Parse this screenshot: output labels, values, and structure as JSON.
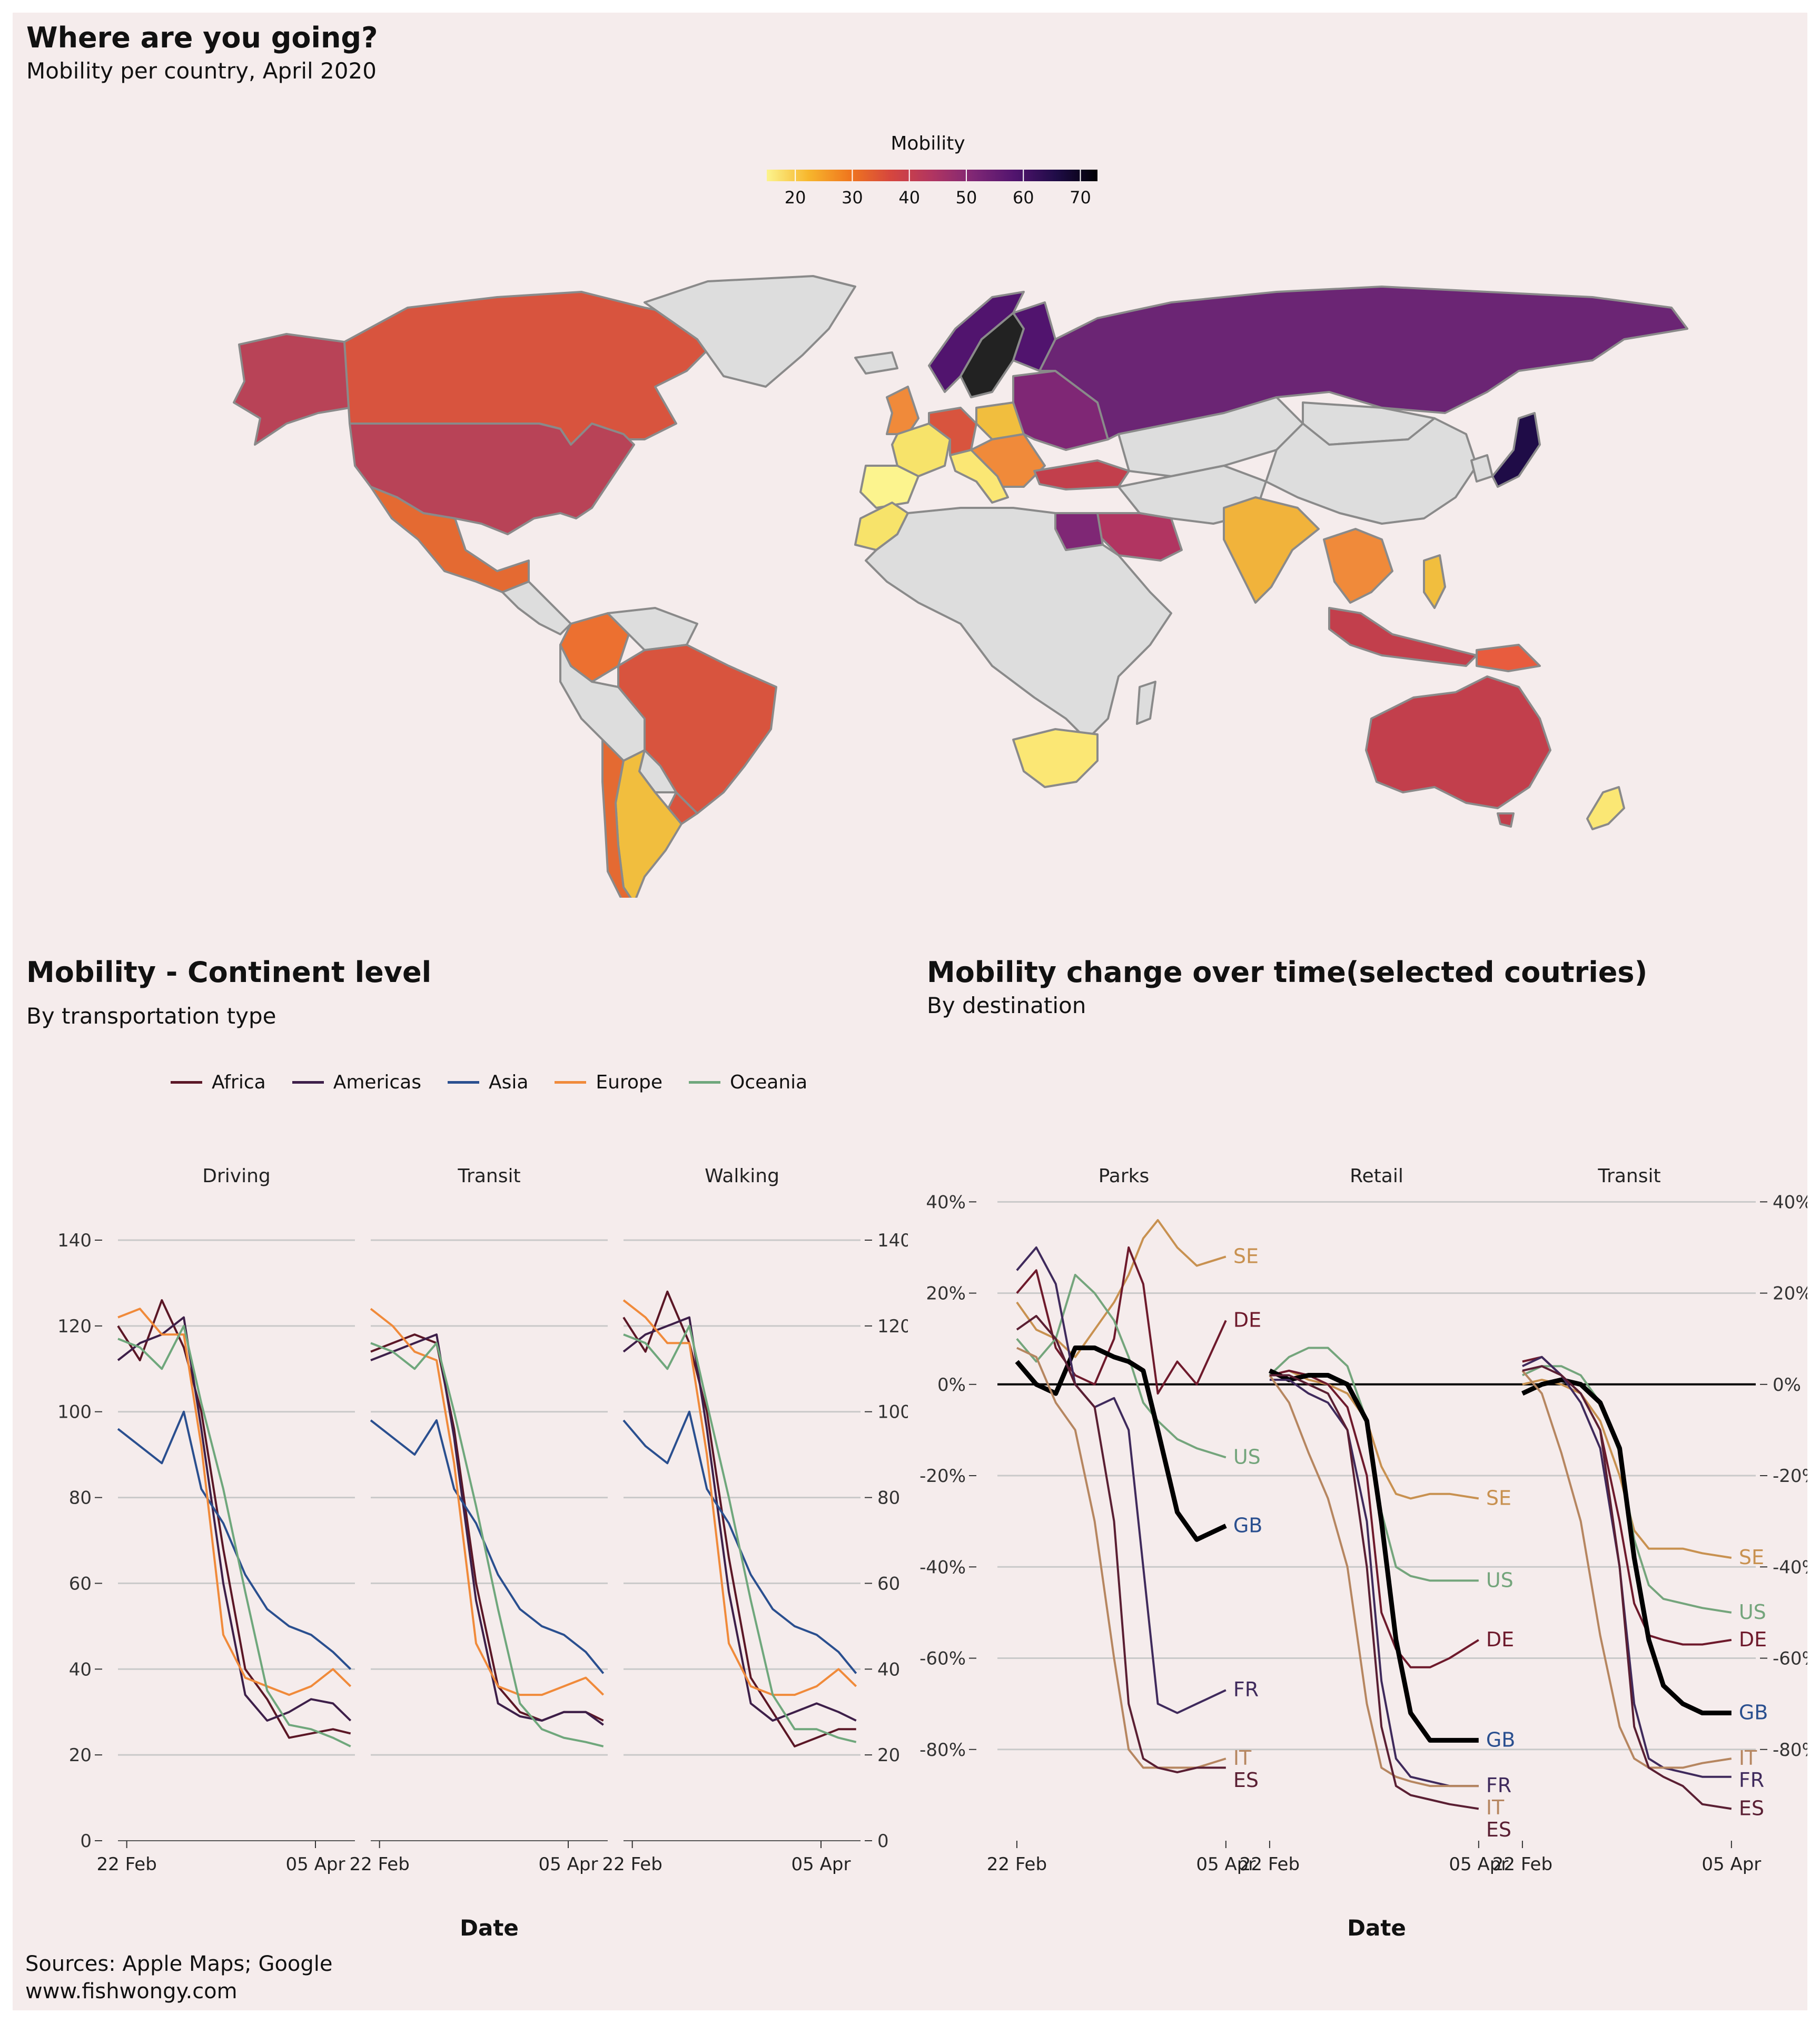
{
  "map": {
    "title": "Where are you going?",
    "subtitle": "Mobility per country, April 2020",
    "legend_title": "Mobility",
    "legend_ticks": [
      "20",
      "30",
      "40",
      "50",
      "60",
      "70"
    ],
    "legend_colors": [
      "#fcf48e",
      "#f7b72d",
      "#f0771e",
      "#d6463e",
      "#b13561",
      "#7f2775",
      "#51146e",
      "#1f0c47",
      "#000004"
    ],
    "no_data_color": "#dddddd"
  },
  "continent": {
    "title": "Mobility - Continent level",
    "subtitle": "By transportation type",
    "legend": [
      {
        "name": "Africa",
        "color": "#5b1726"
      },
      {
        "name": "Americas",
        "color": "#3d1f49"
      },
      {
        "name": "Asia",
        "color": "#2a4f8f"
      },
      {
        "name": "Europe",
        "color": "#f08a3a"
      },
      {
        "name": "Oceania",
        "color": "#6fa77c"
      }
    ],
    "x_label": "Date"
  },
  "countries": {
    "title": "Mobility change over time(selected coutries)",
    "subtitle": "By destination",
    "x_label": "Date",
    "line_labels": [
      "SE",
      "DE",
      "US",
      "GB",
      "FR",
      "IT",
      "ES"
    ]
  },
  "source": {
    "line1": "Sources: Apple Maps; Google",
    "line2": "www.fishwongy.com"
  },
  "chart_data": [
    {
      "type": "line",
      "title": "Mobility - Continent level",
      "subtitle": "By transportation type",
      "facets": [
        "Driving",
        "Transit",
        "Walking"
      ],
      "xlabel": "Date",
      "x_ticks": [
        "22 Feb",
        "05 Apr"
      ],
      "x_range": [
        "2020-02-20",
        "2020-04-14"
      ],
      "ylim": [
        0,
        140
      ],
      "y_ticks": [
        0,
        20,
        40,
        60,
        80,
        100,
        120,
        140
      ],
      "series_by_facet": {
        "Driving": {
          "x": [
            "2020-02-20",
            "2020-02-25",
            "2020-03-01",
            "2020-03-06",
            "2020-03-10",
            "2020-03-15",
            "2020-03-20",
            "2020-03-25",
            "2020-03-30",
            "2020-04-04",
            "2020-04-09",
            "2020-04-13"
          ],
          "series": [
            {
              "name": "Africa",
              "values": [
                120,
                112,
                126,
                115,
                100,
                68,
                40,
                33,
                24,
                25,
                26,
                25
              ]
            },
            {
              "name": "Americas",
              "values": [
                112,
                116,
                118,
                122,
                96,
                60,
                34,
                28,
                30,
                33,
                32,
                28
              ]
            },
            {
              "name": "Asia",
              "values": [
                96,
                92,
                88,
                100,
                82,
                74,
                62,
                54,
                50,
                48,
                44,
                40
              ]
            },
            {
              "name": "Europe",
              "values": [
                122,
                124,
                118,
                118,
                92,
                48,
                38,
                36,
                34,
                36,
                40,
                36
              ]
            },
            {
              "name": "Oceania",
              "values": [
                117,
                115,
                110,
                120,
                102,
                82,
                58,
                35,
                27,
                26,
                24,
                22
              ]
            }
          ]
        },
        "Transit": {
          "x": [
            "2020-02-20",
            "2020-02-25",
            "2020-03-01",
            "2020-03-06",
            "2020-03-10",
            "2020-03-15",
            "2020-03-20",
            "2020-03-25",
            "2020-03-30",
            "2020-04-04",
            "2020-04-09",
            "2020-04-13"
          ],
          "series": [
            {
              "name": "Africa",
              "values": [
                114,
                116,
                118,
                116,
                96,
                60,
                36,
                30,
                28,
                30,
                30,
                28
              ]
            },
            {
              "name": "Americas",
              "values": [
                112,
                114,
                116,
                118,
                94,
                56,
                32,
                29,
                28,
                30,
                30,
                27
              ]
            },
            {
              "name": "Asia",
              "values": [
                98,
                94,
                90,
                98,
                82,
                74,
                62,
                54,
                50,
                48,
                44,
                39
              ]
            },
            {
              "name": "Europe",
              "values": [
                124,
                120,
                114,
                112,
                88,
                46,
                36,
                34,
                34,
                36,
                38,
                34
              ]
            },
            {
              "name": "Oceania",
              "values": [
                116,
                114,
                110,
                116,
                100,
                78,
                54,
                32,
                26,
                24,
                23,
                22
              ]
            }
          ]
        },
        "Walking": {
          "x": [
            "2020-02-20",
            "2020-02-25",
            "2020-03-01",
            "2020-03-06",
            "2020-03-10",
            "2020-03-15",
            "2020-03-20",
            "2020-03-25",
            "2020-03-30",
            "2020-04-04",
            "2020-04-09",
            "2020-04-13"
          ],
          "series": [
            {
              "name": "Africa",
              "values": [
                122,
                114,
                128,
                116,
                100,
                66,
                38,
                30,
                22,
                24,
                26,
                26
              ]
            },
            {
              "name": "Americas",
              "values": [
                114,
                118,
                120,
                122,
                96,
                58,
                32,
                28,
                30,
                32,
                30,
                28
              ]
            },
            {
              "name": "Asia",
              "values": [
                98,
                92,
                88,
                100,
                82,
                74,
                62,
                54,
                50,
                48,
                44,
                39
              ]
            },
            {
              "name": "Europe",
              "values": [
                126,
                122,
                116,
                116,
                90,
                46,
                36,
                34,
                34,
                36,
                40,
                36
              ]
            },
            {
              "name": "Oceania",
              "values": [
                118,
                116,
                110,
                120,
                102,
                80,
                56,
                34,
                26,
                26,
                24,
                23
              ]
            }
          ]
        }
      }
    },
    {
      "type": "line",
      "title": "Mobility change over time(selected coutries)",
      "subtitle": "By destination",
      "facets": [
        "Parks",
        "Retail",
        "Transit"
      ],
      "xlabel": "Date",
      "x_ticks": [
        "22 Feb",
        "05 Apr"
      ],
      "x_range": [
        "2020-02-18",
        "2020-04-10"
      ],
      "ylim": [
        -100,
        42
      ],
      "y_ticks": [
        "40%",
        "20%",
        "0%",
        "-20%",
        "-40%",
        "-60%",
        "-80%"
      ],
      "y_tick_values": [
        40,
        20,
        0,
        -20,
        -40,
        -60,
        -80
      ],
      "series_colors": {
        "SE": "#c89150",
        "DE": "#6e1a2c",
        "US": "#74a57c",
        "GB": "#000000",
        "FR": "#3f2a5c",
        "IT": "#b68660",
        "ES": "#5a1f33"
      },
      "label_colors": {
        "SE": "#c89150",
        "DE": "#6e1a2c",
        "US": "#74a57c",
        "GB": "#2a4f8f",
        "FR": "#3f2a5c",
        "IT": "#b68660",
        "ES": "#5a1f33"
      },
      "series_by_facet": {
        "Parks": {
          "x": [
            "2020-02-22",
            "2020-02-26",
            "2020-03-01",
            "2020-03-05",
            "2020-03-09",
            "2020-03-13",
            "2020-03-16",
            "2020-03-19",
            "2020-03-22",
            "2020-03-26",
            "2020-03-30",
            "2020-04-05"
          ],
          "series": [
            {
              "name": "SE",
              "values": [
                18,
                12,
                10,
                6,
                12,
                18,
                24,
                32,
                36,
                30,
                26,
                28
              ]
            },
            {
              "name": "DE",
              "values": [
                20,
                25,
                8,
                2,
                0,
                10,
                30,
                22,
                -2,
                5,
                0,
                14
              ]
            },
            {
              "name": "US",
              "values": [
                10,
                5,
                10,
                24,
                20,
                14,
                6,
                -4,
                -8,
                -12,
                -14,
                -16
              ]
            },
            {
              "name": "GB",
              "values": [
                5,
                0,
                -2,
                8,
                8,
                6,
                5,
                3,
                -10,
                -28,
                -34,
                -31
              ]
            },
            {
              "name": "FR",
              "values": [
                25,
                30,
                22,
                0,
                -5,
                -3,
                -10,
                -40,
                -70,
                -72,
                -70,
                -67
              ]
            },
            {
              "name": "IT",
              "values": [
                8,
                6,
                -4,
                -10,
                -30,
                -60,
                -80,
                -84,
                -84,
                -84,
                -84,
                -82
              ]
            },
            {
              "name": "ES",
              "values": [
                12,
                15,
                10,
                0,
                -5,
                -30,
                -70,
                -82,
                -84,
                -85,
                -84,
                -84
              ]
            }
          ]
        },
        "Retail": {
          "x": [
            "2020-02-22",
            "2020-02-26",
            "2020-03-01",
            "2020-03-05",
            "2020-03-09",
            "2020-03-13",
            "2020-03-16",
            "2020-03-19",
            "2020-03-22",
            "2020-03-26",
            "2020-03-30",
            "2020-04-05"
          ],
          "series": [
            {
              "name": "SE",
              "values": [
                2,
                3,
                1,
                0,
                -2,
                -8,
                -18,
                -24,
                -25,
                -24,
                -24,
                -25
              ]
            },
            {
              "name": "DE",
              "values": [
                2,
                3,
                2,
                0,
                -5,
                -20,
                -50,
                -58,
                -62,
                -62,
                -60,
                -56
              ]
            },
            {
              "name": "US",
              "values": [
                2,
                6,
                8,
                8,
                4,
                -8,
                -28,
                -40,
                -42,
                -43,
                -43,
                -43
              ]
            },
            {
              "name": "GB",
              "values": [
                3,
                1,
                2,
                2,
                0,
                -8,
                -30,
                -56,
                -72,
                -78,
                -78,
                -78
              ]
            },
            {
              "name": "FR",
              "values": [
                1,
                1,
                -2,
                -4,
                -10,
                -30,
                -65,
                -82,
                -86,
                -87,
                -88,
                -88
              ]
            },
            {
              "name": "IT",
              "values": [
                2,
                -4,
                -15,
                -25,
                -40,
                -70,
                -84,
                -86,
                -87,
                -88,
                -88,
                -88
              ]
            },
            {
              "name": "ES",
              "values": [
                2,
                2,
                0,
                -2,
                -10,
                -40,
                -75,
                -88,
                -90,
                -91,
                -92,
                -93
              ]
            }
          ]
        },
        "Transit": {
          "x": [
            "2020-02-22",
            "2020-02-26",
            "2020-03-01",
            "2020-03-05",
            "2020-03-09",
            "2020-03-13",
            "2020-03-16",
            "2020-03-19",
            "2020-03-22",
            "2020-03-26",
            "2020-03-30",
            "2020-04-05"
          ],
          "series": [
            {
              "name": "SE",
              "values": [
                0,
                1,
                0,
                -2,
                -8,
                -20,
                -32,
                -36,
                -36,
                -36,
                -37,
                -38
              ]
            },
            {
              "name": "DE",
              "values": [
                5,
                6,
                2,
                -2,
                -10,
                -30,
                -48,
                -55,
                -56,
                -57,
                -57,
                -56
              ]
            },
            {
              "name": "US",
              "values": [
                2,
                4,
                4,
                2,
                -4,
                -15,
                -34,
                -44,
                -47,
                -48,
                -49,
                -50
              ]
            },
            {
              "name": "GB",
              "values": [
                -2,
                0,
                1,
                0,
                -4,
                -14,
                -38,
                -56,
                -66,
                -70,
                -72,
                -72
              ]
            },
            {
              "name": "FR",
              "values": [
                4,
                6,
                2,
                -4,
                -14,
                -40,
                -70,
                -82,
                -84,
                -85,
                -86,
                -86
              ]
            },
            {
              "name": "IT",
              "values": [
                3,
                -2,
                -15,
                -30,
                -55,
                -75,
                -82,
                -84,
                -84,
                -84,
                -83,
                -82
              ]
            },
            {
              "name": "ES",
              "values": [
                3,
                4,
                2,
                -2,
                -10,
                -40,
                -75,
                -84,
                -86,
                -88,
                -92,
                -93
              ]
            }
          ]
        }
      }
    }
  ]
}
